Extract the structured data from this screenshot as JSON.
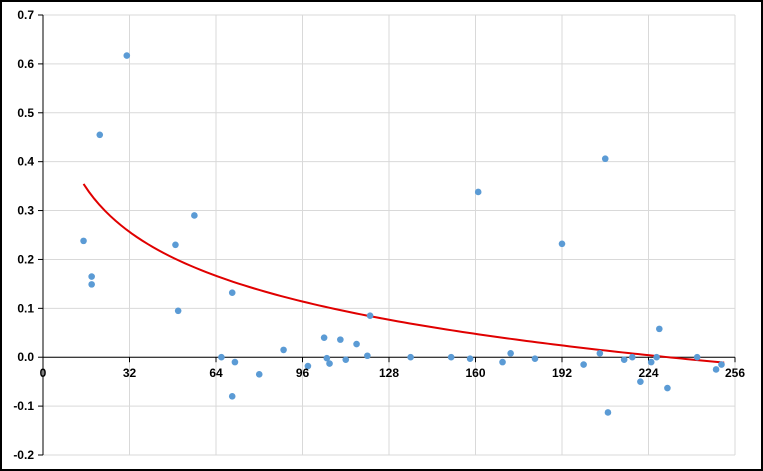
{
  "chart_data": {
    "type": "scatter",
    "title": "",
    "xlabel": "",
    "ylabel": "",
    "xlim": [
      0,
      256
    ],
    "ylim": [
      -0.2,
      0.7
    ],
    "x_ticks": [
      0,
      32,
      64,
      96,
      128,
      160,
      192,
      224,
      256
    ],
    "y_ticks": [
      -0.2,
      -0.1,
      0.0,
      0.1,
      0.2,
      0.3,
      0.4,
      0.5,
      0.6,
      0.7
    ],
    "x_tick_labels": [
      "0",
      "32",
      "64",
      "96",
      "128",
      "160",
      "192",
      "224",
      "256"
    ],
    "y_tick_labels": [
      "-0.2",
      "-0.1",
      "0.0",
      "0.1",
      "0.2",
      "0.3",
      "0.4",
      "0.5",
      "0.6",
      "0.7"
    ],
    "grid": true,
    "legend": "none",
    "colors": {
      "points": "#5B9BD5",
      "trendline": "#E00000",
      "grid": "#D9D9D9",
      "axis": "#000000"
    },
    "series": [
      {
        "points": [
          [
            15,
            0.238
          ],
          [
            18,
            0.165
          ],
          [
            18,
            0.149
          ],
          [
            21,
            0.455
          ],
          [
            31,
            0.617
          ],
          [
            49,
            0.23
          ],
          [
            50,
            0.095
          ],
          [
            56,
            0.29
          ],
          [
            66,
            0.0
          ],
          [
            70,
            0.132
          ],
          [
            70,
            -0.08
          ],
          [
            71,
            -0.01
          ],
          [
            80,
            -0.035
          ],
          [
            89,
            0.015
          ],
          [
            98,
            -0.018
          ],
          [
            104,
            0.04
          ],
          [
            105,
            -0.002
          ],
          [
            106,
            -0.013
          ],
          [
            110,
            0.036
          ],
          [
            112,
            -0.005
          ],
          [
            116,
            0.027
          ],
          [
            120,
            0.003
          ],
          [
            121,
            0.085
          ],
          [
            136,
            0.0
          ],
          [
            151,
            0.0
          ],
          [
            158,
            -0.003
          ],
          [
            161,
            0.338
          ],
          [
            170,
            -0.01
          ],
          [
            173,
            0.008
          ],
          [
            182,
            -0.003
          ],
          [
            192,
            0.232
          ],
          [
            200,
            -0.015
          ],
          [
            206,
            0.008
          ],
          [
            208,
            0.406
          ],
          [
            209,
            -0.113
          ],
          [
            215,
            -0.005
          ],
          [
            218,
            0.0
          ],
          [
            221,
            -0.05
          ],
          [
            225,
            -0.01
          ],
          [
            227,
            0.0
          ],
          [
            228,
            0.058
          ],
          [
            231,
            -0.063
          ],
          [
            242,
            0.0
          ],
          [
            249,
            -0.025
          ],
          [
            251,
            -0.015
          ]
        ]
      }
    ],
    "trendline": {
      "type": "logarithmic",
      "a": 0.7055,
      "b": -0.1296,
      "x_start": 15,
      "x_end": 252
    }
  }
}
